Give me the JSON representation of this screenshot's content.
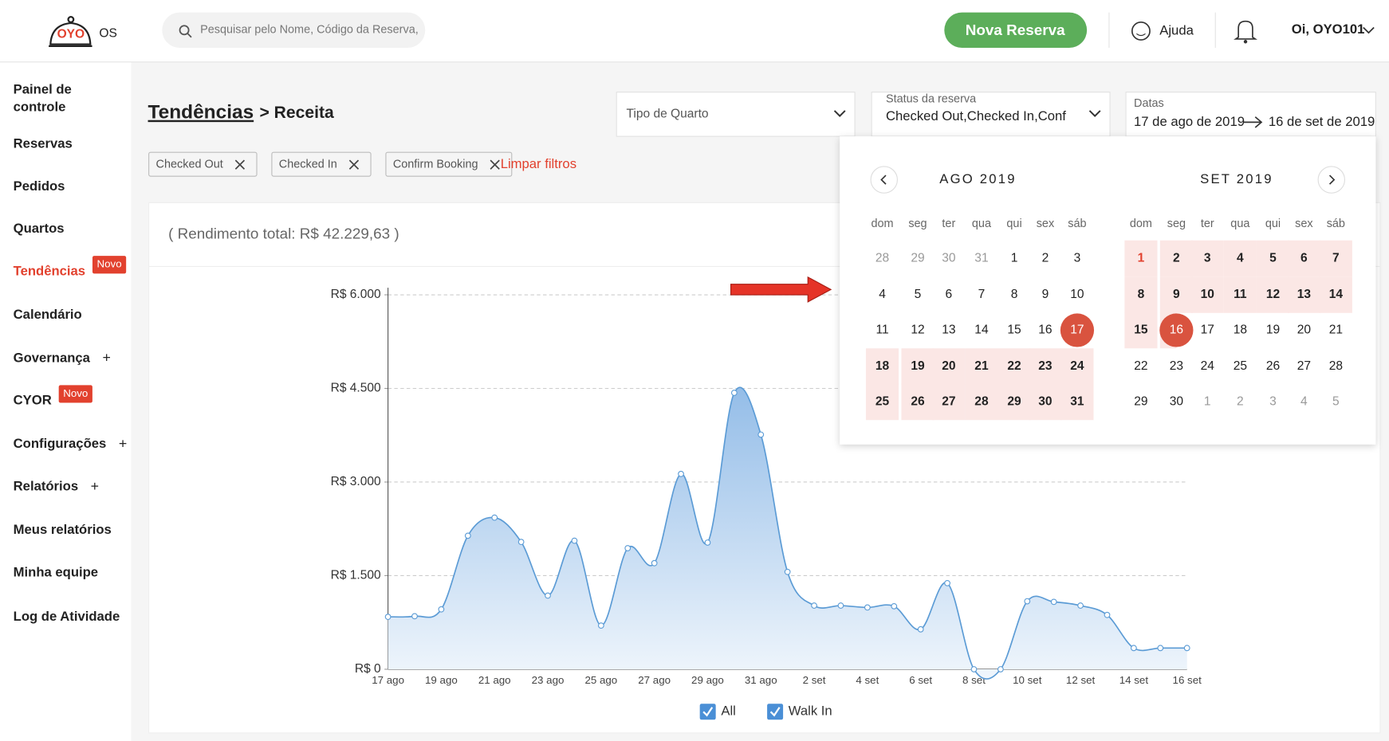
{
  "header": {
    "logo": "OYO",
    "logo_suffix": "OS",
    "search_placeholder": "Pesquisar pelo Nome, Código da Reserva,",
    "new_booking": "Nova Reserva",
    "help": "Ajuda",
    "user": "Oi, OYO101"
  },
  "sidebar": {
    "items": [
      {
        "label": "Painel de controle"
      },
      {
        "label": "Reservas"
      },
      {
        "label": "Pedidos"
      },
      {
        "label": "Quartos"
      },
      {
        "label": "Tendências",
        "badge": "Novo"
      },
      {
        "label": "Calendário"
      },
      {
        "label": "Governança",
        "expand": "+"
      },
      {
        "label": "CYOR",
        "badge": "Novo"
      },
      {
        "label": "Configurações",
        "expand": "+"
      },
      {
        "label": "Relatórios",
        "expand": "+"
      },
      {
        "label": "Meus relatórios"
      },
      {
        "label": "Minha equipe"
      },
      {
        "label": "Log de Atividade"
      }
    ]
  },
  "page": {
    "title": "Tendências",
    "subtitle": "> Receita"
  },
  "filters": {
    "room_type": "Tipo de Quarto",
    "status_label": "Status da reserva",
    "status_value": "Checked Out,Checked In,Conf",
    "dates_label": "Datas",
    "date_from": "17 de ago de 2019",
    "date_to": "16 de set de 2019",
    "chips": [
      "Checked Out",
      "Checked In",
      "Confirm Booking"
    ],
    "clear": "Limpar filtros"
  },
  "calendar": {
    "weekdays": [
      "dom",
      "seg",
      "ter",
      "qua",
      "qui",
      "sex",
      "sáb"
    ],
    "months": [
      {
        "title": "AGO 2019",
        "weeks": [
          [
            28,
            29,
            30,
            31,
            1,
            2,
            3
          ],
          [
            4,
            5,
            6,
            7,
            8,
            9,
            10
          ],
          [
            11,
            12,
            13,
            14,
            15,
            16,
            17
          ],
          [
            18,
            19,
            20,
            21,
            22,
            23,
            24
          ],
          [
            25,
            26,
            27,
            28,
            29,
            30,
            31
          ]
        ]
      },
      {
        "title": "SET 2019",
        "weeks": [
          [
            1,
            2,
            3,
            4,
            5,
            6,
            7
          ],
          [
            8,
            9,
            10,
            11,
            12,
            13,
            14
          ],
          [
            15,
            16,
            17,
            18,
            19,
            20,
            21
          ],
          [
            22,
            23,
            24,
            25,
            26,
            27,
            28
          ],
          [
            29,
            30,
            1,
            2,
            3,
            4,
            5
          ]
        ]
      }
    ]
  },
  "chart": {
    "type": "area",
    "total": "( Rendimento total: R$ 42.229,63 )",
    "categories": [
      "17 ago",
      null,
      "19 ago",
      null,
      "21 ago",
      null,
      "23 ago",
      null,
      "25 ago",
      null,
      "27 ago",
      null,
      "29 ago",
      null,
      "31 ago",
      null,
      "2 set",
      null,
      "4 set",
      null,
      "6 set",
      null,
      "8 set",
      null,
      "10 set",
      null,
      "12 set",
      null,
      "14 set",
      null,
      "16 set"
    ],
    "series": [
      {
        "color": "#5b9bd5",
        "values": [
          840,
          850,
          960,
          2140,
          2430,
          2040,
          1180,
          2060,
          700,
          1940,
          1700,
          3130,
          2030,
          4430,
          3760,
          1560,
          1020,
          1020,
          990,
          1010,
          640,
          1380,
          0,
          0,
          1090,
          1080,
          1020,
          870,
          340,
          340,
          340
        ]
      }
    ],
    "ylim": [
      0,
      6000
    ],
    "yticks": [
      {
        "value": 0,
        "label": "R$ 0"
      },
      {
        "value": 1500,
        "label": "R$ 1.500"
      },
      {
        "value": 3000,
        "label": "R$ 3.000"
      },
      {
        "value": 4500,
        "label": "R$ 4.500"
      },
      {
        "value": 6000,
        "label": "R$ 6.000"
      }
    ],
    "grid": true,
    "legend": [
      "All",
      "Walk In"
    ]
  }
}
